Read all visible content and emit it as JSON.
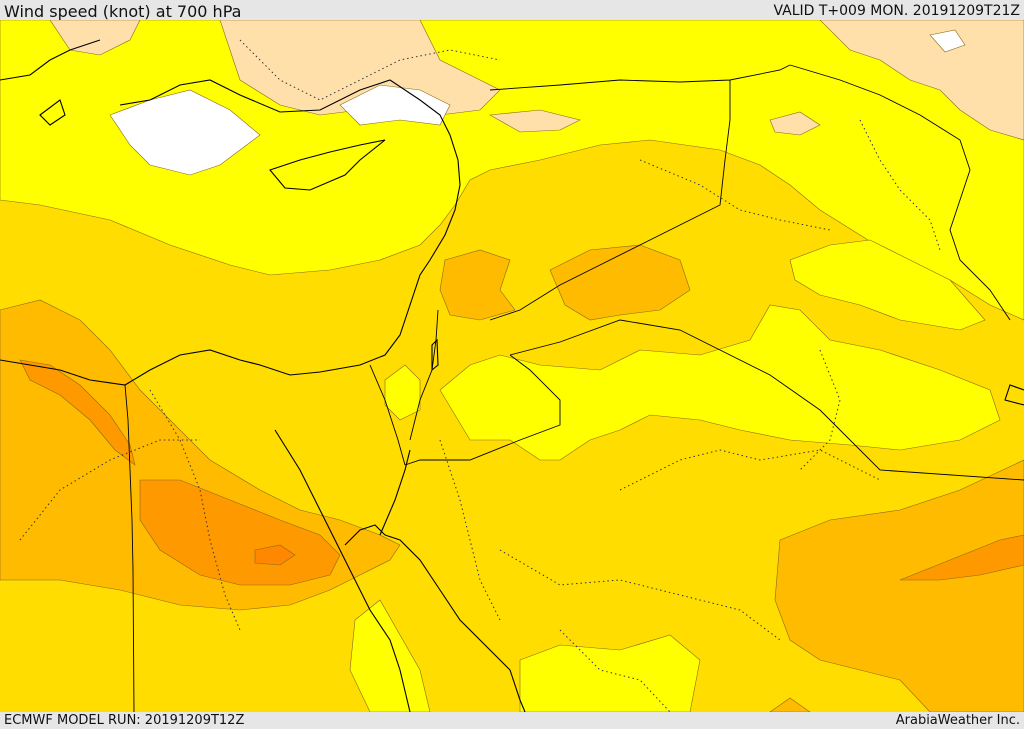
{
  "header": {
    "title": "Wind speed (knot) at 700 hPa",
    "valid": "VALID T+009 MON. 20191209T21Z"
  },
  "footer": {
    "model_run": "ECMWF MODEL RUN: 20191209T12Z",
    "provider": "ArabiaWeather Inc."
  },
  "colors": {
    "calm": "#ffffff",
    "light": "#ffe0aa",
    "band1": "#ffff00",
    "band2": "#ffdd00",
    "band3": "#ffbb00",
    "band4": "#ff9900",
    "band5": "#ff8800"
  }
}
